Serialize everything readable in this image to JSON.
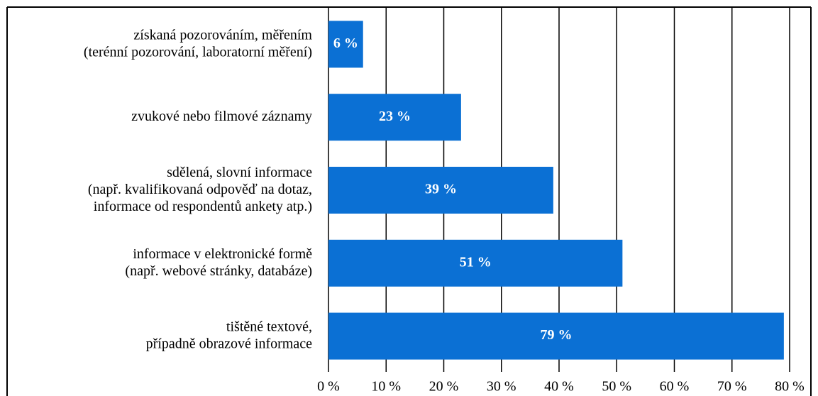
{
  "chart_data": {
    "type": "bar",
    "orientation": "horizontal",
    "categories": [
      "získaná pozorováním, měřením\n(terénní pozorování, laboratorní měření)",
      "zvukové nebo filmové záznamy",
      "sdělená, slovní informace\n(např. kvalifikovaná odpověď na dotaz,\ninformace od respondentů ankety atp.)",
      "informace v elektronické formě\n(např. webové stránky, databáze)",
      "tištěné textové,\npřípadně obrazové informace"
    ],
    "values": [
      6,
      23,
      39,
      51,
      79
    ],
    "value_labels": [
      "6 %",
      "23 %",
      "39 %",
      "51 %",
      "79 %"
    ],
    "color": "#0b70d4",
    "xlim": [
      0,
      80
    ],
    "xticks": [
      {
        "value": 0,
        "label": "0 %"
      },
      {
        "value": 10,
        "label": "10 %"
      },
      {
        "value": 20,
        "label": "20 %"
      },
      {
        "value": 30,
        "label": "30 %"
      },
      {
        "value": 40,
        "label": "40 %"
      },
      {
        "value": 50,
        "label": "50 %"
      },
      {
        "value": 60,
        "label": "60 %"
      },
      {
        "value": 70,
        "label": "70 %"
      },
      {
        "value": 80,
        "label": "80 %"
      }
    ],
    "grid": true
  }
}
